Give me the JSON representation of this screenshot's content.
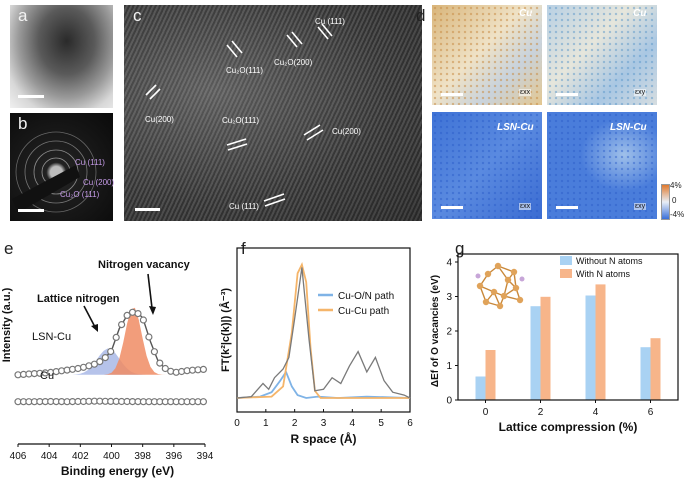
{
  "panels": {
    "a": {
      "label": "a"
    },
    "b": {
      "label": "b",
      "rings": [
        "Cu (111)",
        "Cu (200)",
        "Cu₂O (111)"
      ]
    },
    "c": {
      "label": "c",
      "annotations": [
        "Cu (111)",
        "Cu₂O(111)",
        "Cu₂O(200)",
        "Cu(200)",
        "Cu₂O(111)",
        "Cu(200)",
        "Cu (111)"
      ]
    },
    "d": {
      "label": "d",
      "maps": [
        {
          "name": "Cu",
          "component": "εxx"
        },
        {
          "name": "Cu",
          "component": "εxy"
        },
        {
          "name": "LSN-Cu",
          "component": "εxx"
        },
        {
          "name": "LSN-Cu",
          "component": "εxy"
        }
      ],
      "colorbar": {
        "max": "4%",
        "mid": "0",
        "min": "-4%",
        "colors": [
          "#3a6fd8",
          "#e8eef6",
          "#e07a2e"
        ]
      }
    },
    "e": {
      "label": "e"
    },
    "f": {
      "label": "f"
    },
    "g": {
      "label": "g"
    }
  },
  "chart_data": [
    {
      "type": "line",
      "panel": "e",
      "xlabel": "Binding energy (eV)",
      "ylabel": "Intensity (a.u.)",
      "xlim": [
        406,
        394
      ],
      "x_ticks": [
        "406",
        "404",
        "402",
        "400",
        "398",
        "396",
        "394"
      ],
      "annotations": [
        "Nitrogen vacancy",
        "Lattice nitrogen"
      ],
      "series": [
        {
          "name": "LSN-Cu",
          "x": [
            406,
            405,
            404,
            403,
            402,
            401,
            400.5,
            400,
            399.5,
            399,
            398.5,
            398,
            397.5,
            397,
            396.5,
            396,
            395,
            394
          ],
          "y": [
            0.42,
            0.43,
            0.44,
            0.46,
            0.48,
            0.52,
            0.56,
            0.64,
            0.84,
            0.96,
            1.0,
            0.94,
            0.72,
            0.54,
            0.47,
            0.44,
            0.46,
            0.47
          ]
        },
        {
          "name": "Cu",
          "x": [
            406,
            405,
            404,
            403,
            402,
            401,
            400,
            399,
            398,
            397,
            396,
            395,
            394
          ],
          "y": [
            0.02,
            0.02,
            0.03,
            0.02,
            0.03,
            0.05,
            0.04,
            0.03,
            0.02,
            0.02,
            0.02,
            0.02,
            0.02
          ]
        }
      ],
      "fit_components": [
        {
          "name": "Lattice nitrogen",
          "center": 400.2,
          "color": "#a9b8e6"
        },
        {
          "name": "Nitrogen vacancy",
          "center": 398.6,
          "color": "#f08c64"
        }
      ]
    },
    {
      "type": "line",
      "panel": "f",
      "xlabel": "R space (Å)",
      "ylabel": "FT(k²|c(k)|) (Å⁻³)",
      "xlim": [
        0,
        6
      ],
      "x_ticks": [
        "0",
        "1",
        "2",
        "3",
        "4",
        "5",
        "6"
      ],
      "series": [
        {
          "name": "Cu-O/N path",
          "color": "#7fb3e6",
          "x": [
            0,
            0.8,
            1.2,
            1.5,
            1.7,
            1.9,
            2.1,
            2.4,
            2.8,
            3.5,
            4.5,
            6
          ],
          "y": [
            0.0,
            0.01,
            0.04,
            0.12,
            0.18,
            0.08,
            0.02,
            0.0,
            0.01,
            0.0,
            0.01,
            0.0
          ]
        },
        {
          "name": "Cu-Cu path",
          "color": "#f5b56a",
          "x": [
            0,
            1.2,
            1.6,
            1.9,
            2.1,
            2.25,
            2.4,
            2.55,
            2.7,
            2.9,
            3.5,
            6
          ],
          "y": [
            0.0,
            0.01,
            0.08,
            0.45,
            0.86,
            0.92,
            0.8,
            0.35,
            0.05,
            0.0,
            0.0,
            0.0
          ]
        },
        {
          "name": "",
          "color": "#7a7a7a",
          "x": [
            0,
            0.5,
            0.9,
            1.1,
            1.3,
            1.6,
            1.8,
            2.0,
            2.25,
            2.5,
            2.7,
            3.0,
            3.3,
            3.6,
            3.9,
            4.2,
            4.5,
            4.8,
            5.1,
            5.4,
            5.8,
            6
          ],
          "y": [
            0.0,
            0.01,
            0.1,
            0.06,
            0.14,
            0.2,
            0.28,
            0.55,
            0.9,
            0.4,
            0.05,
            0.06,
            0.14,
            0.1,
            0.22,
            0.32,
            0.18,
            0.28,
            0.12,
            0.04,
            0.02,
            0.0
          ]
        }
      ]
    },
    {
      "type": "bar",
      "panel": "g",
      "xlabel": "Lattice compression (%)",
      "ylabel": "ΔEf of O vacancies (eV)",
      "categories": [
        "0",
        "2",
        "4",
        "6"
      ],
      "ylim": [
        0,
        4
      ],
      "y_ticks": [
        "0",
        "1",
        "2",
        "3",
        "4"
      ],
      "series": [
        {
          "name": "Without N atoms",
          "color": "#a9d2f3",
          "values": [
            0.68,
            2.72,
            3.03,
            1.53
          ]
        },
        {
          "name": "With N atoms",
          "color": "#f7b58a",
          "values": [
            1.45,
            2.99,
            3.35,
            1.79
          ]
        }
      ],
      "legend": "top-right"
    }
  ]
}
